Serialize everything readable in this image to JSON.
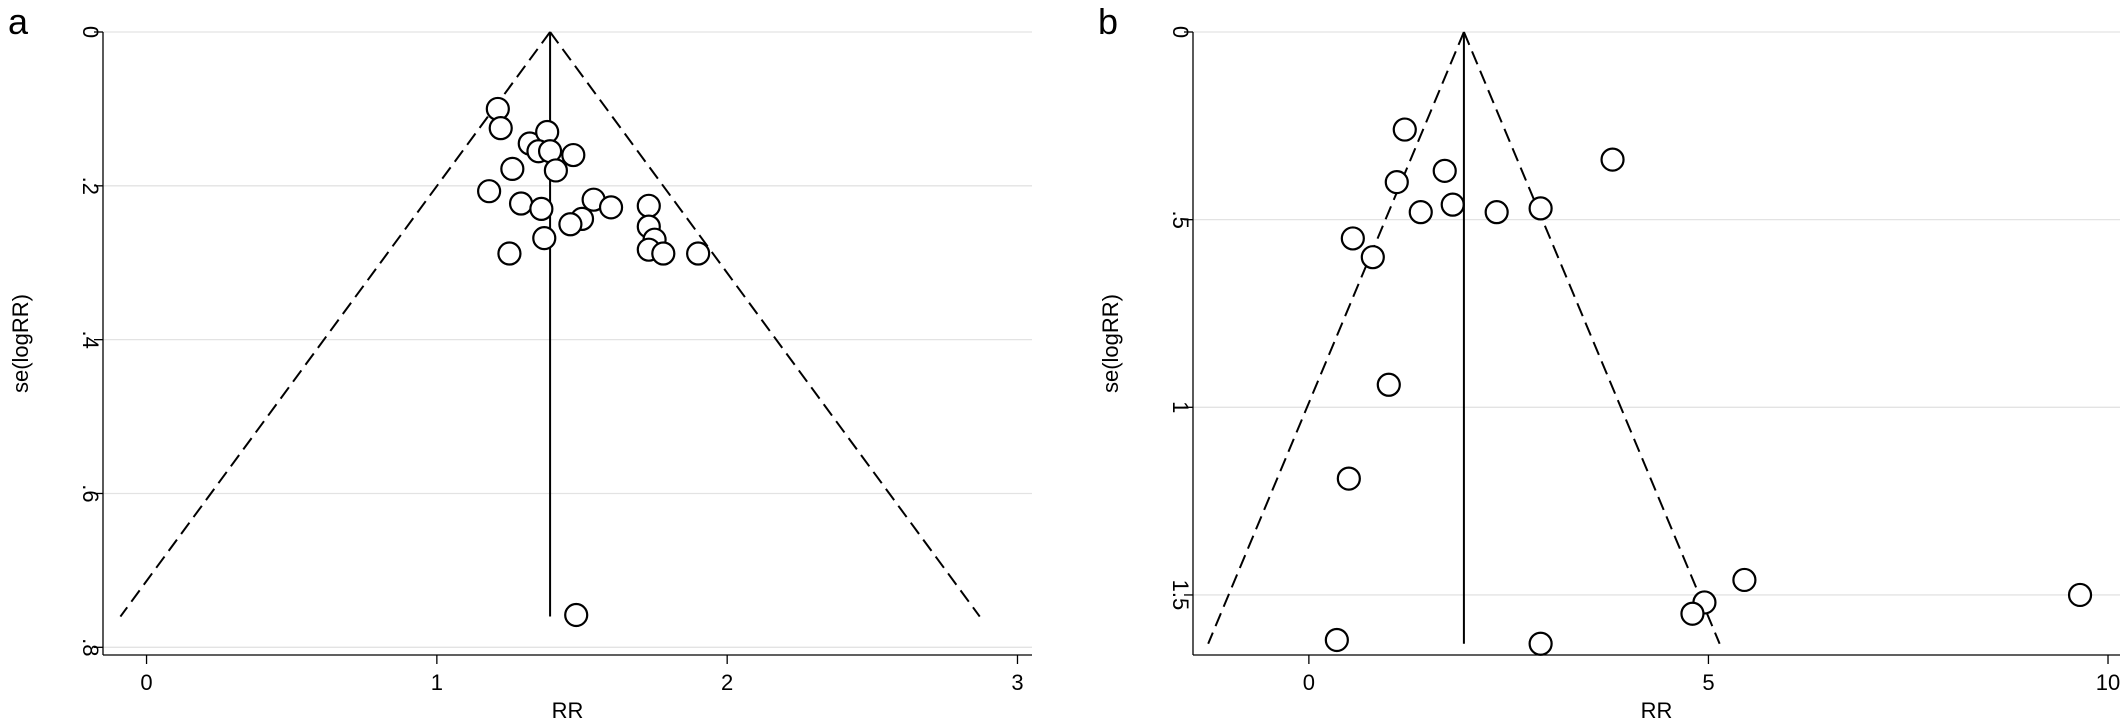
{
  "chart_data": [
    {
      "type": "scatter",
      "panel_label": "a",
      "xlabel": "RR",
      "ylabel": "se(logRR)",
      "xlim": [
        -0.15,
        3.05
      ],
      "ylim": [
        0,
        0.81
      ],
      "y_reversed": true,
      "xticks": [
        0,
        1,
        2,
        3
      ],
      "xtick_labels": [
        "0",
        "1",
        "2",
        "3"
      ],
      "yticks": [
        0,
        0.2,
        0.4,
        0.6,
        0.8
      ],
      "ytick_labels": [
        "0",
        ".2",
        ".4",
        ".6",
        ".8"
      ],
      "grid": true,
      "pooled_rr": 1.39,
      "pooled_line_y_range": [
        0,
        0.76
      ],
      "funnel_left": [
        [
          1.39,
          0
        ],
        [
          -0.09,
          0.76
        ]
      ],
      "funnel_right": [
        [
          1.39,
          0
        ],
        [
          2.87,
          0.76
        ]
      ],
      "points": [
        {
          "x": 1.21,
          "y": 0.1
        },
        {
          "x": 1.22,
          "y": 0.125
        },
        {
          "x": 1.32,
          "y": 0.145
        },
        {
          "x": 1.38,
          "y": 0.13
        },
        {
          "x": 1.35,
          "y": 0.155
        },
        {
          "x": 1.39,
          "y": 0.155
        },
        {
          "x": 1.41,
          "y": 0.18
        },
        {
          "x": 1.47,
          "y": 0.16
        },
        {
          "x": 1.26,
          "y": 0.178
        },
        {
          "x": 1.18,
          "y": 0.207
        },
        {
          "x": 1.29,
          "y": 0.223
        },
        {
          "x": 1.36,
          "y": 0.23
        },
        {
          "x": 1.54,
          "y": 0.218
        },
        {
          "x": 1.6,
          "y": 0.228
        },
        {
          "x": 1.5,
          "y": 0.243
        },
        {
          "x": 1.46,
          "y": 0.25
        },
        {
          "x": 1.73,
          "y": 0.226
        },
        {
          "x": 1.73,
          "y": 0.253
        },
        {
          "x": 1.75,
          "y": 0.27
        },
        {
          "x": 1.73,
          "y": 0.283
        },
        {
          "x": 1.78,
          "y": 0.288
        },
        {
          "x": 1.9,
          "y": 0.288
        },
        {
          "x": 1.37,
          "y": 0.268
        },
        {
          "x": 1.25,
          "y": 0.288
        },
        {
          "x": 1.48,
          "y": 0.758
        }
      ]
    },
    {
      "type": "scatter",
      "panel_label": "b",
      "xlabel": "RR",
      "ylabel": "se(logRR)",
      "xlim": [
        -1.45,
        10.15
      ],
      "ylim": [
        0,
        1.66
      ],
      "y_reversed": true,
      "xticks": [
        0,
        5,
        10
      ],
      "xtick_labels": [
        "0",
        "5",
        "10"
      ],
      "yticks": [
        0,
        0.5,
        1,
        1.5
      ],
      "ytick_labels": [
        "0",
        ".5",
        "1",
        "1.5"
      ],
      "grid": true,
      "pooled_rr": 1.94,
      "pooled_line_y_range": [
        0,
        1.63
      ],
      "funnel_left": [
        [
          1.94,
          0
        ],
        [
          -1.26,
          1.63
        ]
      ],
      "funnel_right": [
        [
          1.94,
          0
        ],
        [
          5.14,
          1.63
        ]
      ],
      "points": [
        {
          "x": 1.2,
          "y": 0.26
        },
        {
          "x": 1.7,
          "y": 0.37
        },
        {
          "x": 1.1,
          "y": 0.4
        },
        {
          "x": 3.8,
          "y": 0.34
        },
        {
          "x": 1.4,
          "y": 0.48
        },
        {
          "x": 1.8,
          "y": 0.46
        },
        {
          "x": 2.35,
          "y": 0.48
        },
        {
          "x": 2.9,
          "y": 0.47
        },
        {
          "x": 0.55,
          "y": 0.55
        },
        {
          "x": 0.8,
          "y": 0.6
        },
        {
          "x": 1.0,
          "y": 0.94
        },
        {
          "x": 0.5,
          "y": 1.19
        },
        {
          "x": 5.45,
          "y": 1.46
        },
        {
          "x": 4.95,
          "y": 1.52
        },
        {
          "x": 4.8,
          "y": 1.55
        },
        {
          "x": 9.65,
          "y": 1.5
        },
        {
          "x": 0.35,
          "y": 1.62
        },
        {
          "x": 2.9,
          "y": 1.63
        }
      ]
    }
  ]
}
